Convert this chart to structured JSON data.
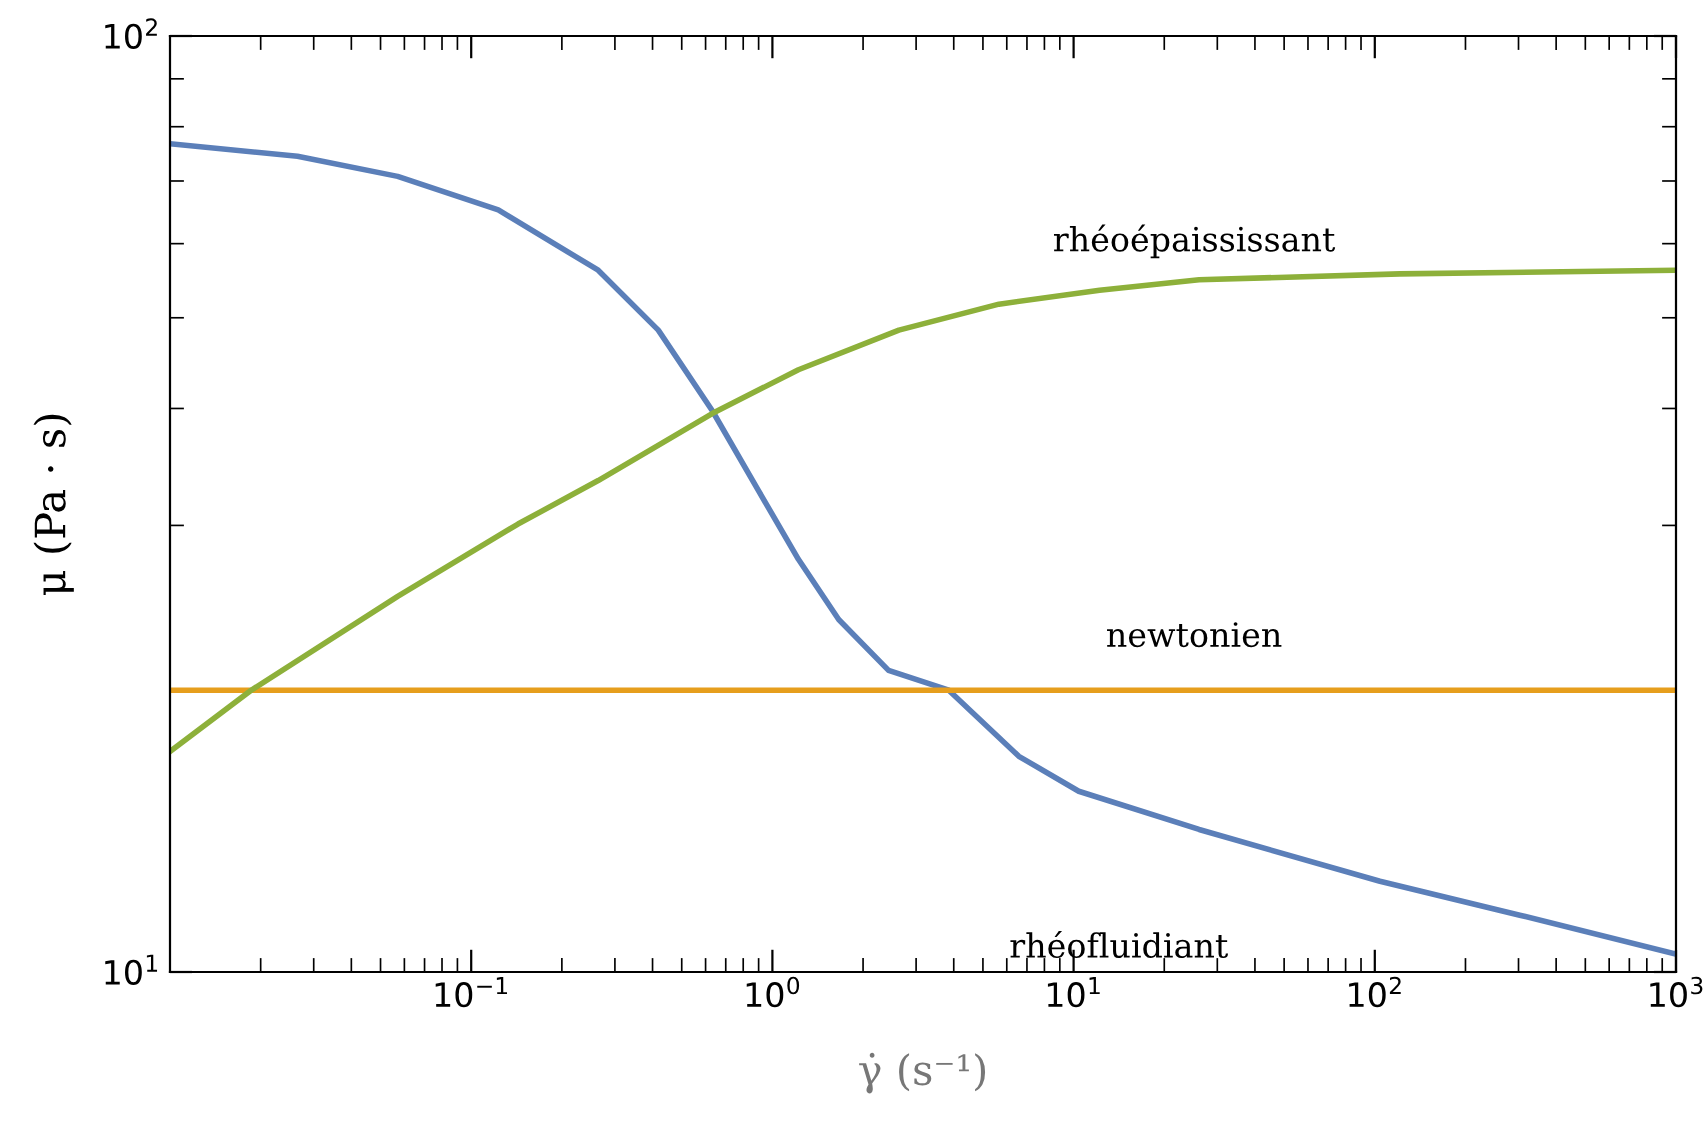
{
  "chart_data": {
    "type": "line",
    "xlabel": "γ̇ (s⁻¹)",
    "ylabel": "μ (Pa · s)",
    "log": "xy",
    "grid": false,
    "legend": false,
    "marker": "none",
    "line_style": "solid",
    "xlim": [
      0.01,
      1000
    ],
    "ylim": [
      10,
      100
    ],
    "xticks": [
      {
        "value": 0.1,
        "label": "10$^{−1}$"
      },
      {
        "value": 1,
        "label": "10$^{0}$"
      },
      {
        "value": 10,
        "label": "10$^{1}$"
      },
      {
        "value": 100,
        "label": "10$^{2}$"
      },
      {
        "value": 1000,
        "label": "10$^{3}$"
      }
    ],
    "yticks": [
      {
        "value": 10,
        "label": "10$^{1}$"
      },
      {
        "value": 100,
        "label": "10$^{2}$"
      }
    ],
    "series": [
      {
        "name": "rhéofluidiant",
        "color": "#5b7fb9",
        "x": [
          0.01,
          0.0265,
          0.057,
          0.123,
          0.264,
          0.418,
          0.631,
          0.898,
          1.22,
          1.66,
          2.43,
          3.85,
          6.58,
          10.4,
          26.1,
          104,
          303,
          1000
        ],
        "values": [
          76.7,
          74.4,
          70.8,
          65.2,
          56.2,
          48.5,
          39.8,
          32.7,
          27.6,
          23.8,
          21.0,
          20.0,
          17.0,
          15.6,
          14.2,
          12.5,
          11.5,
          10.45
        ]
      },
      {
        "name": "newtonien",
        "color": "#e69e1d",
        "x": [
          0.01,
          1000
        ],
        "values": [
          20,
          20
        ]
      },
      {
        "name": "rhéoépaississant",
        "color": "#8db03a",
        "x": [
          0.01,
          0.0186,
          0.057,
          0.143,
          0.264,
          0.631,
          1.22,
          2.63,
          5.65,
          12.2,
          26.1,
          121,
          1000
        ],
        "values": [
          17.2,
          20.0,
          25.2,
          30.1,
          33.5,
          39.5,
          44.0,
          48.5,
          51.7,
          53.5,
          54.9,
          55.7,
          56.2
        ]
      }
    ]
  }
}
